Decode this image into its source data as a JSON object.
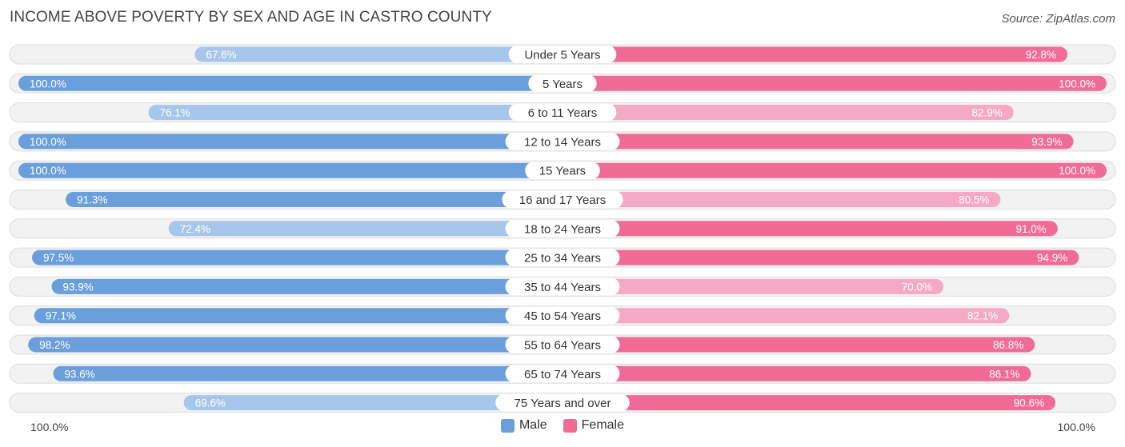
{
  "title": "INCOME ABOVE POVERTY BY SEX AND AGE IN CASTRO COUNTY",
  "source": "Source: ZipAtlas.com",
  "axis": {
    "left_label": "100.0%",
    "right_label": "100.0%"
  },
  "legend": {
    "male_label": "Male",
    "female_label": "Female"
  },
  "colors": {
    "male_dark": "#6a9fdc",
    "male_light": "#a7c6ec",
    "female_dark": "#f06b96",
    "female_light": "#f6a9c4",
    "track": "#eeeeee"
  },
  "chart_data": {
    "type": "bar",
    "orientation": "horizontal-diverging",
    "title": "INCOME ABOVE POVERTY BY SEX AND AGE IN CASTRO COUNTY",
    "xlim": [
      0,
      100
    ],
    "categories": [
      "Under 5 Years",
      "5 Years",
      "6 to 11 Years",
      "12 to 14 Years",
      "15 Years",
      "16 and 17 Years",
      "18 to 24 Years",
      "25 to 34 Years",
      "35 to 44 Years",
      "45 to 54 Years",
      "55 to 64 Years",
      "65 to 74 Years",
      "75 Years and over"
    ],
    "series": [
      {
        "name": "Male",
        "values": [
          67.6,
          100.0,
          76.1,
          100.0,
          100.0,
          91.3,
          72.4,
          97.5,
          93.9,
          97.1,
          98.2,
          93.6,
          69.6
        ],
        "labels": [
          "67.6%",
          "100.0%",
          "76.1%",
          "100.0%",
          "100.0%",
          "91.3%",
          "72.4%",
          "97.5%",
          "93.9%",
          "97.1%",
          "98.2%",
          "93.6%",
          "69.6%"
        ]
      },
      {
        "name": "Female",
        "values": [
          92.8,
          100.0,
          82.9,
          93.9,
          100.0,
          80.5,
          91.0,
          94.9,
          70.0,
          82.1,
          86.8,
          86.1,
          90.6
        ],
        "labels": [
          "92.8%",
          "100.0%",
          "82.9%",
          "93.9%",
          "100.0%",
          "80.5%",
          "91.0%",
          "94.9%",
          "70.0%",
          "82.1%",
          "86.8%",
          "86.1%",
          "90.6%"
        ]
      }
    ]
  }
}
